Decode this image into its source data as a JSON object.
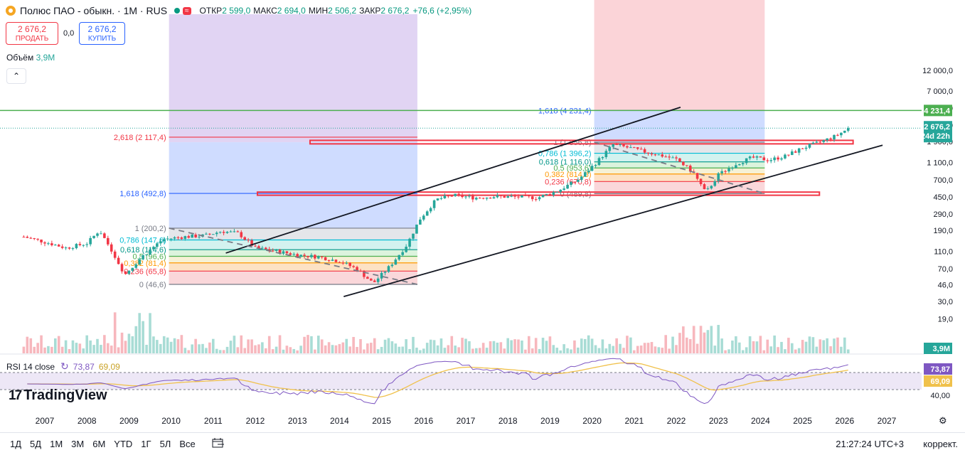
{
  "header": {
    "symbol": "Полюс ПАО - обыкн. · 1М · RUS",
    "open_label": "ОТКР",
    "open": "2 599,0",
    "high_label": "МАКС",
    "high": "2 694,0",
    "low_label": "МИН",
    "low": "2 506,2",
    "close_label": "ЗАКР",
    "close": "2 676,2",
    "change": "+76,6 (+2,95%)",
    "wave_glyph": "≈"
  },
  "trade": {
    "sell_price": "2 676,2",
    "sell_label": "ПРОДАТЬ",
    "spread": "0,0",
    "buy_price": "2 676,2",
    "buy_label": "КУПИТЬ"
  },
  "volume_label": {
    "name": "Объём",
    "value": "3,9M"
  },
  "collapse_glyph": "⌃",
  "rsi": {
    "name": "RSI 14 close",
    "icon": "↻",
    "value": "73,87",
    "ma": "69,09"
  },
  "logo_text": "TradingView",
  "logo_mark": "17",
  "bottom": {
    "ranges": [
      "1Д",
      "5Д",
      "1М",
      "3М",
      "6М",
      "YTD",
      "1Г",
      "5Л",
      "Все"
    ],
    "calendar_icon": "calendar-range-icon",
    "time": "21:27:24 UTC+3",
    "corr": "коррект.",
    "settings_icon": "⚙"
  },
  "colors": {
    "up": "#26a69a",
    "down": "#f23645",
    "rsi": "#7e57c2",
    "rsi_ma": "#f0c14b",
    "fib_blue": "#2962ff",
    "resistance_green": "#4caf50"
  },
  "chart_data": {
    "type": "candlestick",
    "price_scale": "log",
    "y_ticks": [
      12000,
      7000,
      4500,
      2900,
      1900,
      1100,
      700,
      450,
      290,
      190,
      110,
      70,
      46,
      30,
      19
    ],
    "y_tick_labels": [
      "12 000,0",
      "7 000,0",
      "4 500,0",
      "2 900,0",
      "1 900,0",
      "1 100,0",
      "700,0",
      "450,0",
      "290,0",
      "190,0",
      "110,0",
      "70,0",
      "46,0",
      "30,0",
      "19,0"
    ],
    "x_ticks": [
      "2007",
      "2008",
      "2009",
      "2010",
      "2011",
      "2012",
      "2013",
      "2014",
      "2015",
      "2016",
      "2017",
      "2018",
      "2019",
      "2020",
      "2021",
      "2022",
      "2023",
      "2024",
      "2025",
      "2026",
      "2027"
    ],
    "last_price_label": "2 676,2",
    "countdown": "24d 22h",
    "resistance_label": "4 231,4",
    "volume_label": "3,9M",
    "rsi_ticks": [
      "40,00"
    ],
    "rsi_last": "73,87",
    "rsi_ma_last": "69,09",
    "close_anchors": [
      [
        2006.5,
        160
      ],
      [
        2007.0,
        140
      ],
      [
        2007.5,
        120
      ],
      [
        2008.0,
        135
      ],
      [
        2008.3,
        190
      ],
      [
        2008.6,
        110
      ],
      [
        2008.9,
        60
      ],
      [
        2009.3,
        95
      ],
      [
        2009.8,
        150
      ],
      [
        2010.3,
        160
      ],
      [
        2010.8,
        165
      ],
      [
        2011.2,
        185
      ],
      [
        2011.6,
        175
      ],
      [
        2012.0,
        120
      ],
      [
        2012.5,
        110
      ],
      [
        2013.0,
        100
      ],
      [
        2013.5,
        95
      ],
      [
        2014.0,
        85
      ],
      [
        2014.4,
        70
      ],
      [
        2014.8,
        48
      ],
      [
        2015.2,
        75
      ],
      [
        2015.6,
        130
      ],
      [
        2015.9,
        250
      ],
      [
        2016.3,
        420
      ],
      [
        2016.7,
        470
      ],
      [
        2017.2,
        440
      ],
      [
        2017.7,
        455
      ],
      [
        2018.2,
        450
      ],
      [
        2018.7,
        440
      ],
      [
        2019.2,
        530
      ],
      [
        2019.7,
        720
      ],
      [
        2020.1,
        1100
      ],
      [
        2020.5,
        1750
      ],
      [
        2020.9,
        1600
      ],
      [
        2021.3,
        1430
      ],
      [
        2021.7,
        1300
      ],
      [
        2022.0,
        1200
      ],
      [
        2022.4,
        850
      ],
      [
        2022.7,
        500
      ],
      [
        2023.0,
        800
      ],
      [
        2023.4,
        1050
      ],
      [
        2023.8,
        1250
      ],
      [
        2024.2,
        1170
      ],
      [
        2024.6,
        1300
      ],
      [
        2025.0,
        1600
      ],
      [
        2025.4,
        1850
      ],
      [
        2025.8,
        2200
      ],
      [
        2026.1,
        2676.2
      ]
    ],
    "fib_left": {
      "levels": [
        {
          "ratio": "1,618",
          "price": 492.8,
          "label": "1,618 (492,8)"
        },
        {
          "ratio": "1",
          "price": 200.2,
          "label": "1 (200,2)"
        },
        {
          "ratio": "0,786",
          "price": 147.6,
          "label": "0,786 (147,6)"
        },
        {
          "ratio": "0,618",
          "price": 114.6,
          "label": "0,618 (114,6)"
        },
        {
          "ratio": "0,5",
          "price": 96.6,
          "label": "0,5 (96,6)"
        },
        {
          "ratio": "0,382",
          "price": 81.4,
          "label": "0,382 (81,4)"
        },
        {
          "ratio": "0,236",
          "price": 65.8,
          "label": "0,236 (65,8)"
        },
        {
          "ratio": "0",
          "price": 46.6,
          "label": "0 (46,6)"
        },
        {
          "ratio": "2,618",
          "price": 2117.4,
          "label": "2,618 (2 117,4)"
        }
      ]
    },
    "fib_right": {
      "levels": [
        {
          "ratio": "1,618",
          "price": 4231.4,
          "label": "1,618 (4 231,4)"
        },
        {
          "ratio": "1",
          "price": 1856.8,
          "label": "1 (1 856,8)"
        },
        {
          "ratio": "0,786",
          "price": 1396.2,
          "label": "0,786 (1 396,2)"
        },
        {
          "ratio": "0,618",
          "price": 1116.0,
          "label": "0,618 (1 116,0)"
        },
        {
          "ratio": "0,5",
          "price": 953.6,
          "label": "0,5 (953,6)"
        },
        {
          "ratio": "0,382",
          "price": 814.8,
          "label": "0,382 (814,8)"
        },
        {
          "ratio": "0,236",
          "price": 670.8,
          "label": "0,236 (670,8)"
        },
        {
          "ratio": "0",
          "price": 489.8,
          "label": "0 (489,8)"
        }
      ]
    }
  }
}
